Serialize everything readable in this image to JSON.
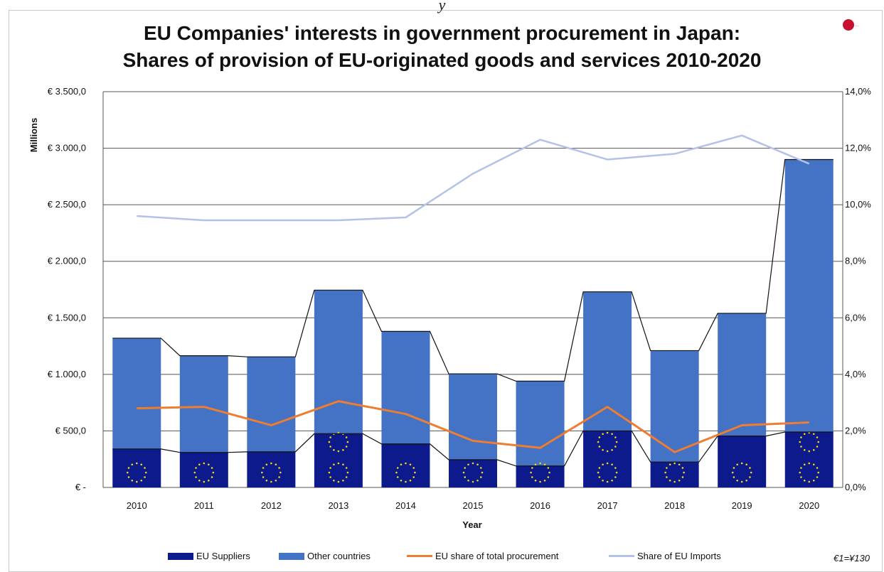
{
  "header": {
    "top_text": "y",
    "title_line1": "EU Companies' interests in government procurement in Japan:",
    "title_line2": "Shares of provision of EU-originated goods and services 2010-2020",
    "logo_icon": "red-circle-logo-icon",
    "logo_text": "..."
  },
  "colors": {
    "eu_suppliers": "#0d1a8c",
    "other_countries": "#4472c4",
    "eu_share_line": "#ed7d31",
    "eu_imports_line": "#b4c2e8",
    "connector": "#111111",
    "grid": "#555555"
  },
  "chart_data": {
    "type": "bar",
    "stacked": true,
    "title": "EU Companies' interests in government procurement in Japan: Shares of provision of EU-originated goods and services 2010-2020",
    "xlabel": "Year",
    "ylabel": "Millions",
    "categories": [
      "2010",
      "2011",
      "2012",
      "2013",
      "2014",
      "2015",
      "2016",
      "2017",
      "2018",
      "2019",
      "2020"
    ],
    "ylim": [
      0,
      3500
    ],
    "y2lim": [
      0,
      14
    ],
    "y_ticks": [
      0,
      500,
      1000,
      1500,
      2000,
      2500,
      3000,
      3500
    ],
    "y_tick_labels": [
      "€ -",
      "€ 500,0",
      "€ 1.000,0",
      "€ 1.500,0",
      "€ 2.000,0",
      "€ 2.500,0",
      "€ 3.000,0",
      "€ 3.500,0"
    ],
    "y2_ticks": [
      0,
      2,
      4,
      6,
      8,
      10,
      12,
      14
    ],
    "y2_tick_labels": [
      "0,0%",
      "2,0%",
      "4,0%",
      "6,0%",
      "8,0%",
      "10,0%",
      "12,0%",
      "14,0%"
    ],
    "series": [
      {
        "name": "EU Suppliers",
        "kind": "bar",
        "values": [
          340,
          310,
          315,
          475,
          385,
          245,
          190,
          500,
          225,
          455,
          490
        ]
      },
      {
        "name": "Other countries",
        "kind": "bar",
        "values": [
          980,
          855,
          840,
          1270,
          995,
          760,
          750,
          1230,
          985,
          1085,
          2410
        ]
      },
      {
        "name": "EU share of total procurement",
        "kind": "line",
        "axis": "right",
        "values": [
          2.8,
          2.85,
          2.2,
          3.05,
          2.6,
          1.65,
          1.4,
          2.85,
          1.25,
          2.2,
          2.3
        ]
      },
      {
        "name": "Share of EU Imports",
        "kind": "line",
        "axis": "right",
        "values": [
          9.6,
          9.45,
          9.45,
          9.45,
          9.55,
          11.1,
          12.3,
          11.6,
          11.8,
          12.45,
          11.45
        ]
      }
    ],
    "legend_position": "bottom",
    "grid": true
  },
  "legend": [
    {
      "label": "EU Suppliers"
    },
    {
      "label": "Other countries"
    },
    {
      "label": "EU share of total procurement"
    },
    {
      "label": "Share of EU Imports"
    }
  ],
  "note": "€1=¥130"
}
